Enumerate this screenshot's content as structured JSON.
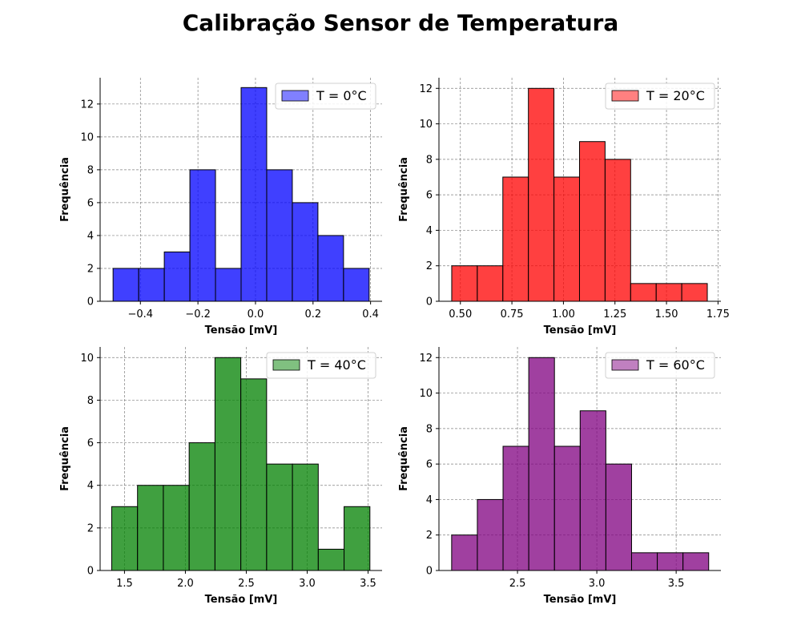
{
  "suptitle": "Calibração Sensor de Temperatura",
  "chart_data": [
    {
      "type": "bar",
      "panel": "top-left",
      "legend": "T = 0°C",
      "legend_position": "top-right",
      "color": "#0000ff",
      "legend_color": "#8080ff",
      "xlabel": "Tensão [mV]",
      "ylabel": "Frequência",
      "xlim": [
        -0.54,
        0.44
      ],
      "ylim": [
        0,
        13.6
      ],
      "xticks": [
        -0.4,
        -0.2,
        0.0,
        0.2,
        0.4
      ],
      "xtick_labels": [
        "−0.4",
        "−0.2",
        "0.0",
        "0.2",
        "0.4"
      ],
      "yticks": [
        0,
        2,
        4,
        6,
        8,
        10,
        12
      ],
      "grid": true,
      "bin_edges": [
        -0.495,
        -0.406,
        -0.317,
        -0.228,
        -0.139,
        -0.05,
        0.039,
        0.128,
        0.217,
        0.306,
        0.395
      ],
      "counts": [
        2,
        2,
        3,
        8,
        2,
        13,
        8,
        6,
        4,
        2
      ]
    },
    {
      "type": "bar",
      "panel": "top-right",
      "legend": "T = 20°C",
      "legend_position": "top-right",
      "color": "#ff0000",
      "legend_color": "#ff8080",
      "xlabel": "Tensão [mV]",
      "ylabel": "Frequência",
      "xlim": [
        0.396,
        1.764
      ],
      "ylim": [
        0,
        12.6
      ],
      "xticks": [
        0.5,
        0.75,
        1.0,
        1.25,
        1.5,
        1.75
      ],
      "xtick_labels": [
        "0.50",
        "0.75",
        "1.00",
        "1.25",
        "1.50",
        "1.75"
      ],
      "yticks": [
        0,
        2,
        4,
        6,
        8,
        10,
        12
      ],
      "grid": true,
      "bin_edges": [
        0.458,
        0.582,
        0.706,
        0.83,
        0.954,
        1.078,
        1.202,
        1.326,
        1.45,
        1.574,
        1.698
      ],
      "counts": [
        2,
        2,
        7,
        12,
        7,
        9,
        8,
        1,
        1,
        1
      ]
    },
    {
      "type": "bar",
      "panel": "bottom-left",
      "legend": "T = 40°C",
      "legend_position": "top-right",
      "color": "#008000",
      "legend_color": "#80c080",
      "xlabel": "Tensão [mV]",
      "ylabel": "Frequência",
      "xlim": [
        1.3,
        3.615
      ],
      "ylim": [
        0,
        10.5
      ],
      "xticks": [
        1.5,
        2.0,
        2.5,
        3.0,
        3.5
      ],
      "xtick_labels": [
        "1.5",
        "2.0",
        "2.5",
        "3.0",
        "3.5"
      ],
      "yticks": [
        0,
        2,
        4,
        6,
        8,
        10
      ],
      "grid": true,
      "bin_edges": [
        1.395,
        1.607,
        1.819,
        2.031,
        2.243,
        2.455,
        2.667,
        2.879,
        3.091,
        3.303,
        3.515
      ],
      "counts": [
        3,
        4,
        4,
        6,
        10,
        9,
        5,
        5,
        1,
        3
      ]
    },
    {
      "type": "bar",
      "panel": "bottom-right",
      "legend": "T = 60°C",
      "legend_position": "top-right",
      "color": "#800080",
      "legend_color": "#c080c0",
      "xlabel": "Tensão [mV]",
      "ylabel": "Frequência",
      "xlim": [
        2.005,
        3.782
      ],
      "ylim": [
        0,
        12.6
      ],
      "xticks": [
        2.5,
        3.0,
        3.5
      ],
      "xtick_labels": [
        "2.5",
        "3.0",
        "3.5"
      ],
      "yticks": [
        0,
        2,
        4,
        6,
        8,
        10,
        12
      ],
      "grid": true,
      "bin_edges": [
        2.085,
        2.247,
        2.409,
        2.571,
        2.733,
        2.895,
        3.057,
        3.219,
        3.381,
        3.543,
        3.705
      ],
      "counts": [
        2,
        4,
        7,
        12,
        7,
        9,
        6,
        1,
        1,
        1
      ]
    }
  ]
}
